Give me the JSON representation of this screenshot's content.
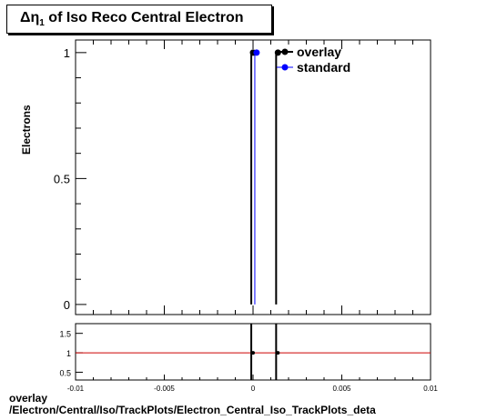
{
  "chart_data": [
    {
      "type": "scatter",
      "panel": "main",
      "title_prefix": "Δη",
      "title_sub": "1",
      "title_rest": " of Iso Reco Central  Electron",
      "ylabel": "Electrons",
      "xlim": [
        -0.01,
        0.01
      ],
      "ylim": [
        -0.04,
        1.05
      ],
      "y_ticks": [
        {
          "value": 0,
          "label": "0"
        },
        {
          "value": 0.5,
          "label": "0.5"
        },
        {
          "value": 1,
          "label": "1"
        }
      ],
      "series": [
        {
          "name": "overlay",
          "color": "#000000",
          "x": [
            0.0,
            0.0014
          ],
          "y": [
            1,
            1
          ]
        },
        {
          "name": "standard",
          "color": "#0000ff",
          "x": [
            0.0002
          ],
          "y": [
            1
          ]
        }
      ],
      "vlines": [
        {
          "x": -0.0001,
          "color": "#000000"
        },
        {
          "x": 0.0001,
          "color": "#0000ff"
        },
        {
          "x": 0.0013,
          "color": "#000000"
        }
      ],
      "legend": "top-right"
    },
    {
      "type": "scatter",
      "panel": "ratio",
      "xlim": [
        -0.01,
        0.01
      ],
      "ylim": [
        0.3,
        1.75
      ],
      "x_ticks": [
        {
          "value": -0.01,
          "label": "-0.01"
        },
        {
          "value": -0.005,
          "label": "-0.005"
        },
        {
          "value": 0,
          "label": "0"
        },
        {
          "value": 0.005,
          "label": "0.005"
        },
        {
          "value": 0.01,
          "label": "0.01"
        }
      ],
      "y_ticks": [
        {
          "value": 0.5,
          "label": "0.5"
        },
        {
          "value": 1,
          "label": "1"
        },
        {
          "value": 1.5,
          "label": "1.5"
        }
      ],
      "reference_line": {
        "y": 1,
        "color": "#cc0000"
      },
      "x": [
        0.0,
        0.0014
      ],
      "y": [
        1,
        1
      ]
    }
  ],
  "footer": {
    "line1": "overlay",
    "line2": "/Electron/Central/Iso/TrackPlots/Electron_Central_Iso_TrackPlots_deta"
  }
}
